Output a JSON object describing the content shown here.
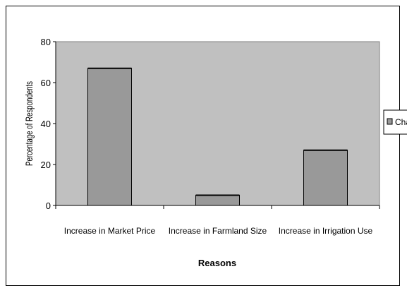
{
  "chart_data": {
    "type": "bar",
    "categories": [
      "Increase in Market Price",
      "Increase in Farmland Size",
      "Increase in Irrigation Use"
    ],
    "series": [
      {
        "name": "Cha",
        "values": [
          67,
          5,
          27
        ]
      }
    ],
    "xlabel": "Reasons",
    "ylabel": "Percentage of Respondents",
    "ylim": [
      0,
      80
    ],
    "yticks": [
      0,
      20,
      40,
      60,
      80
    ],
    "grid": false,
    "legend": "right",
    "colors": {
      "plot_area": "#c0c0c0",
      "bar_fill": "#999999",
      "bar_stroke": "#000000"
    }
  }
}
